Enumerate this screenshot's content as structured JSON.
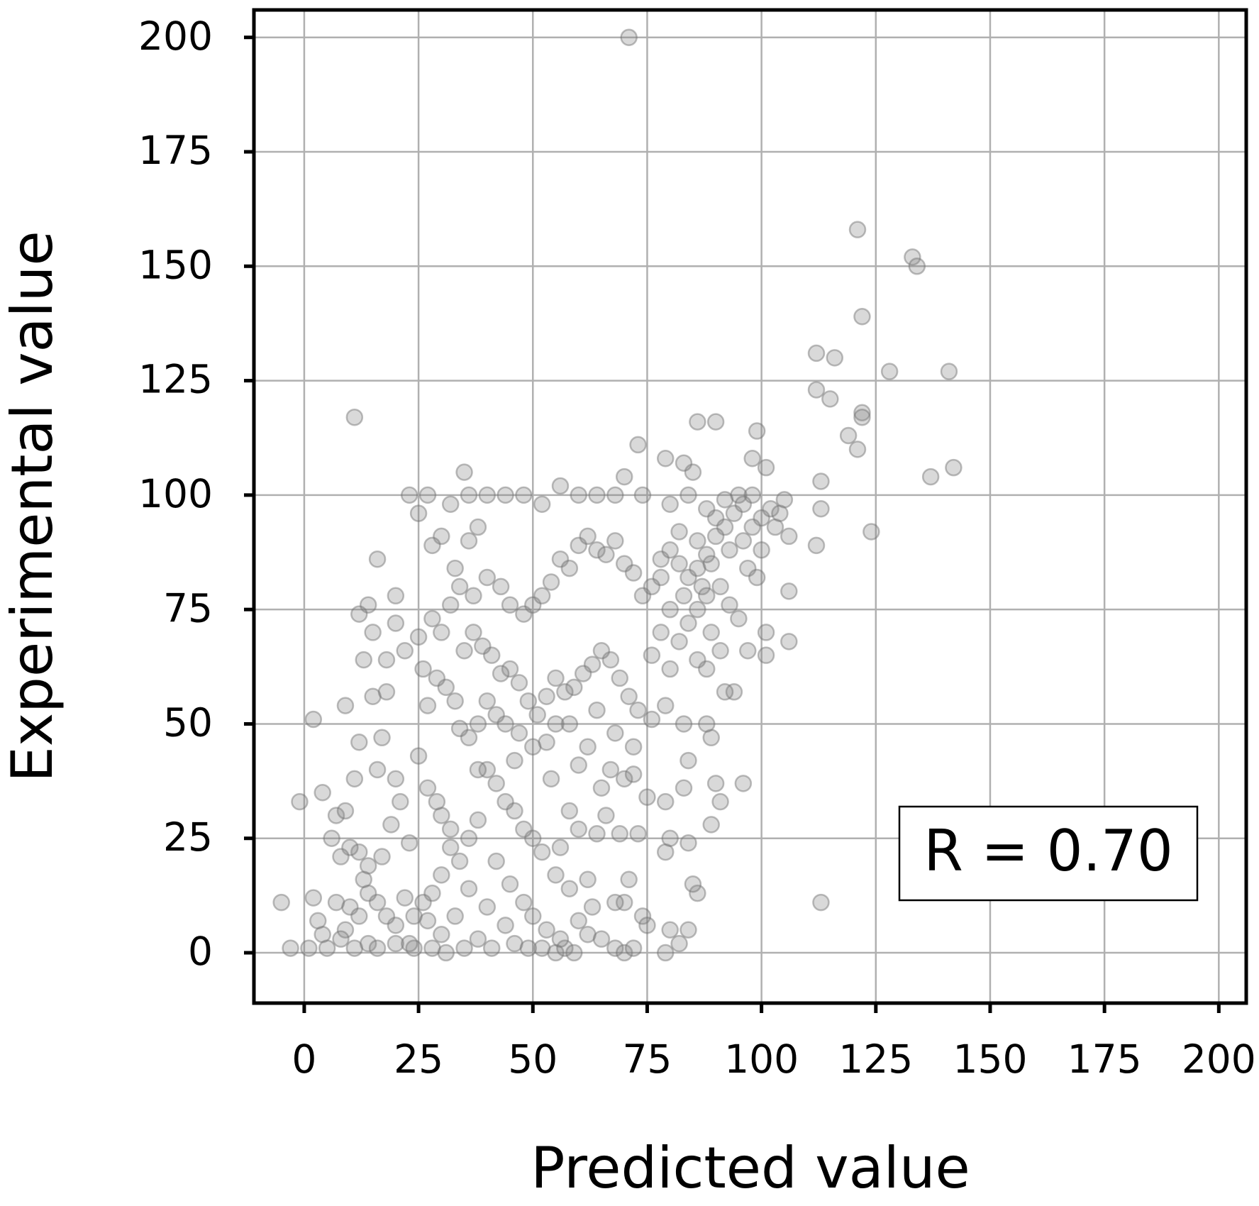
{
  "chart_data": {
    "type": "scatter",
    "xlabel": "Predicted value",
    "ylabel": "Experimental value",
    "annotation": "R = 0.70",
    "color": "#808080",
    "edgecolor": "#6e6e6e",
    "grid": true,
    "xlim": [
      -11,
      206
    ],
    "ylim": [
      -11,
      206
    ],
    "xticks": [
      0,
      25,
      50,
      75,
      100,
      125,
      150,
      175,
      200
    ],
    "yticks": [
      0,
      25,
      50,
      75,
      100,
      125,
      150,
      175,
      200
    ],
    "x": [
      71,
      121,
      133,
      134,
      122,
      112,
      116,
      128,
      141,
      112,
      115,
      122,
      122,
      119,
      121,
      137,
      142,
      113,
      113,
      124,
      112,
      106,
      106,
      101,
      101,
      113,
      11,
      -5,
      -3,
      -1,
      2,
      4,
      90,
      88,
      92,
      86,
      84,
      80,
      95,
      98,
      100,
      102,
      96,
      93,
      89,
      87,
      83,
      80,
      78,
      82,
      85,
      83,
      86,
      90,
      73,
      79,
      99,
      98,
      101,
      70,
      74,
      68,
      64,
      60,
      56,
      52,
      48,
      44,
      40,
      36,
      32,
      27,
      23,
      35,
      25,
      38,
      36,
      30,
      28,
      33,
      16,
      20,
      14,
      12,
      15,
      20,
      22,
      18,
      13,
      15,
      18,
      17,
      12,
      9,
      20,
      16,
      25,
      27,
      30,
      32,
      29,
      23,
      21,
      19,
      17,
      14,
      12,
      10,
      8,
      6,
      7,
      9,
      11,
      13,
      10,
      9,
      8,
      11,
      14,
      16,
      20,
      24,
      28,
      31,
      35,
      38,
      41,
      46,
      49,
      52,
      55,
      57,
      59,
      62,
      65,
      68,
      70,
      72,
      79,
      82,
      84,
      80,
      86,
      85,
      84,
      80,
      79,
      83,
      84,
      79,
      75,
      73,
      69,
      70,
      72,
      65,
      67,
      62,
      60,
      58,
      55,
      53,
      50,
      47,
      44,
      42,
      40,
      38,
      36,
      34,
      33,
      31,
      29,
      27,
      26,
      25,
      28,
      30,
      32,
      34,
      37,
      40,
      43,
      45,
      48,
      50,
      52,
      54,
      56,
      58,
      60,
      62,
      64,
      66,
      68,
      70,
      72,
      74,
      76,
      78,
      80,
      82,
      84,
      86,
      88,
      91,
      93,
      95,
      94,
      92,
      88,
      86,
      89,
      91,
      97,
      89,
      88,
      83,
      79,
      76,
      73,
      71,
      69,
      67,
      65,
      63,
      61,
      59,
      57,
      55,
      53,
      51,
      49,
      47,
      45,
      43,
      41,
      39,
      37,
      35,
      90,
      96,
      91,
      89,
      74,
      75,
      70,
      68,
      71,
      64,
      66,
      62,
      58,
      55,
      52,
      50,
      48,
      46,
      44,
      42,
      40,
      38,
      36,
      34,
      32,
      30,
      28,
      26,
      24,
      22,
      20,
      18,
      16,
      14,
      12,
      4,
      3,
      2,
      5,
      1,
      7,
      42,
      45,
      48,
      50,
      53,
      56,
      60,
      63,
      44,
      40,
      36,
      33,
      30,
      27,
      23,
      38,
      46,
      54,
      58,
      60,
      56,
      64,
      68,
      72,
      76,
      78,
      80,
      82,
      84,
      86,
      88,
      90,
      92,
      94,
      96,
      98,
      100,
      103,
      104,
      106,
      105,
      97,
      99
    ],
    "values": [
      200,
      158,
      152,
      150,
      139,
      131,
      130,
      127,
      127,
      123,
      121,
      118,
      117,
      113,
      110,
      104,
      106,
      103,
      97,
      92,
      89,
      79,
      68,
      70,
      65,
      11,
      117,
      11,
      1,
      33,
      51,
      35,
      95,
      97,
      93,
      90,
      100,
      98,
      100,
      100,
      95,
      97,
      90,
      88,
      85,
      80,
      78,
      75,
      82,
      92,
      105,
      107,
      116,
      116,
      111,
      108,
      114,
      108,
      106,
      104,
      100,
      100,
      100,
      100,
      102,
      98,
      100,
      100,
      100,
      100,
      98,
      100,
      100,
      105,
      96,
      93,
      90,
      91,
      89,
      84,
      86,
      78,
      76,
      74,
      70,
      72,
      66,
      64,
      64,
      56,
      57,
      47,
      46,
      54,
      38,
      40,
      43,
      36,
      30,
      27,
      33,
      24,
      33,
      28,
      21,
      19,
      22,
      23,
      21,
      25,
      30,
      31,
      38,
      16,
      10,
      5,
      3,
      1,
      2,
      1,
      2,
      1,
      1,
      0,
      1,
      3,
      1,
      2,
      1,
      1,
      0,
      1,
      0,
      4,
      3,
      1,
      0,
      1,
      0,
      2,
      5,
      5,
      13,
      15,
      24,
      25,
      22,
      36,
      42,
      33,
      34,
      26,
      26,
      38,
      39,
      36,
      40,
      45,
      41,
      50,
      50,
      46,
      45,
      48,
      50,
      52,
      55,
      50,
      47,
      49,
      55,
      58,
      60,
      54,
      62,
      69,
      73,
      70,
      76,
      80,
      78,
      82,
      80,
      76,
      74,
      76,
      78,
      81,
      86,
      84,
      89,
      91,
      88,
      87,
      90,
      85,
      83,
      78,
      80,
      86,
      88,
      85,
      82,
      84,
      87,
      80,
      76,
      73,
      57,
      57,
      62,
      64,
      70,
      66,
      66,
      47,
      50,
      50,
      54,
      51,
      53,
      56,
      60,
      64,
      66,
      63,
      61,
      58,
      57,
      60,
      56,
      52,
      55,
      59,
      62,
      61,
      65,
      67,
      70,
      66,
      37,
      37,
      33,
      28,
      8,
      6,
      11,
      11,
      16,
      26,
      30,
      16,
      14,
      17,
      22,
      25,
      27,
      31,
      33,
      37,
      40,
      29,
      25,
      20,
      23,
      17,
      13,
      11,
      8,
      12,
      6,
      8,
      11,
      13,
      8,
      4,
      7,
      12,
      1,
      1,
      11,
      20,
      15,
      11,
      8,
      5,
      3,
      7,
      10,
      6,
      10,
      14,
      8,
      4,
      7,
      2,
      40,
      42,
      38,
      31,
      27,
      23,
      53,
      48,
      45,
      65,
      70,
      62,
      68,
      72,
      75,
      78,
      91,
      99,
      96,
      98,
      93,
      88,
      93,
      96,
      91,
      99,
      84,
      82
    ]
  }
}
